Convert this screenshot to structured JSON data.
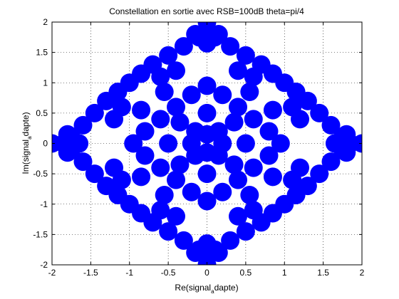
{
  "chart_data": {
    "type": "scatter",
    "title": "Constellation en sortie avec RSB=100dB theta=pi/4",
    "xlabel": {
      "before": "Re(signal",
      "subscript": "a",
      "after": "dapte)"
    },
    "ylabel": {
      "before": "Im(signal",
      "subscript": "a",
      "after": "dapte)"
    },
    "xlim": [
      -2,
      2
    ],
    "ylim": [
      -2,
      2
    ],
    "xticks": [
      -2,
      -1.5,
      -1,
      -0.5,
      0,
      0.5,
      1,
      1.5,
      2
    ],
    "yticks": [
      -2,
      -1.5,
      -1,
      -0.5,
      0,
      0.5,
      1,
      1.5,
      2
    ],
    "xtick_labels": [
      "-2",
      "-1.5",
      "-1",
      "-0.5",
      "0",
      "0.5",
      "1",
      "1.5",
      "2"
    ],
    "ytick_labels": [
      "-2",
      "-1.5",
      "-1",
      "-0.5",
      "0",
      "0.5",
      "1",
      "1.5",
      "2"
    ],
    "grid": true,
    "marker_color": "#0000ff",
    "series": [
      {
        "marker": "circle",
        "points": [
          [
            0,
            2
          ],
          [
            2,
            0
          ],
          [
            0,
            -2
          ],
          [
            -2,
            0
          ],
          [
            0,
            1.85
          ],
          [
            1.85,
            0
          ],
          [
            0,
            -1.85
          ],
          [
            -1.85,
            0
          ],
          [
            0,
            1.65
          ],
          [
            1.65,
            0
          ],
          [
            0,
            -1.65
          ],
          [
            -1.65,
            0
          ],
          [
            0.15,
            1.8
          ],
          [
            -0.15,
            1.8
          ],
          [
            0.15,
            -1.8
          ],
          [
            -0.15,
            -1.8
          ],
          [
            1.8,
            0.15
          ],
          [
            1.8,
            -0.15
          ],
          [
            -1.8,
            0.15
          ],
          [
            -1.8,
            -0.15
          ],
          [
            0.3,
            1.6
          ],
          [
            -0.3,
            1.6
          ],
          [
            0.3,
            -1.6
          ],
          [
            -0.3,
            -1.6
          ],
          [
            1.6,
            0.3
          ],
          [
            1.6,
            -0.3
          ],
          [
            -1.6,
            0.3
          ],
          [
            -1.6,
            -0.3
          ],
          [
            0.5,
            1.45
          ],
          [
            -0.5,
            1.45
          ],
          [
            0.5,
            -1.45
          ],
          [
            -0.5,
            -1.45
          ],
          [
            1.45,
            0.5
          ],
          [
            1.45,
            -0.5
          ],
          [
            -1.45,
            0.5
          ],
          [
            -1.45,
            -0.5
          ],
          [
            0.7,
            1.3
          ],
          [
            -0.7,
            1.3
          ],
          [
            0.7,
            -1.3
          ],
          [
            -0.7,
            -1.3
          ],
          [
            1.3,
            0.7
          ],
          [
            1.3,
            -0.7
          ],
          [
            -1.3,
            0.7
          ],
          [
            -1.3,
            -0.7
          ],
          [
            1.0,
            1.0
          ],
          [
            -1.0,
            1.0
          ],
          [
            1.0,
            -1.0
          ],
          [
            -1.0,
            -1.0
          ],
          [
            0.85,
            1.15
          ],
          [
            -0.85,
            1.15
          ],
          [
            0.85,
            -1.15
          ],
          [
            -0.85,
            -1.15
          ],
          [
            1.15,
            0.85
          ],
          [
            1.15,
            -0.85
          ],
          [
            -1.15,
            0.85
          ],
          [
            -1.15,
            -0.85
          ],
          [
            0.6,
            1.1
          ],
          [
            -0.6,
            1.1
          ],
          [
            0.6,
            -1.1
          ],
          [
            -0.6,
            -1.1
          ],
          [
            1.1,
            0.6
          ],
          [
            1.1,
            -0.6
          ],
          [
            -1.1,
            0.6
          ],
          [
            -1.1,
            -0.6
          ],
          [
            0.4,
            1.2
          ],
          [
            -0.4,
            1.2
          ],
          [
            0.4,
            -1.2
          ],
          [
            -0.4,
            -1.2
          ],
          [
            1.2,
            0.4
          ],
          [
            1.2,
            -0.4
          ],
          [
            -1.2,
            0.4
          ],
          [
            -1.2,
            -0.4
          ],
          [
            0,
            0.95
          ],
          [
            0.95,
            0
          ],
          [
            0,
            -0.95
          ],
          [
            -0.95,
            0
          ],
          [
            0.2,
            0.8
          ],
          [
            -0.2,
            0.8
          ],
          [
            0.2,
            -0.8
          ],
          [
            -0.2,
            -0.8
          ],
          [
            0.8,
            0.2
          ],
          [
            0.8,
            -0.2
          ],
          [
            -0.8,
            0.2
          ],
          [
            -0.8,
            -0.2
          ],
          [
            0.4,
            0.6
          ],
          [
            -0.4,
            0.6
          ],
          [
            0.4,
            -0.6
          ],
          [
            -0.4,
            -0.6
          ],
          [
            0.6,
            0.4
          ],
          [
            0.6,
            -0.4
          ],
          [
            -0.6,
            0.4
          ],
          [
            -0.6,
            -0.4
          ],
          [
            0.35,
            0.35
          ],
          [
            -0.35,
            0.35
          ],
          [
            0.35,
            -0.35
          ],
          [
            -0.35,
            -0.35
          ],
          [
            0,
            0.5
          ],
          [
            0.5,
            0
          ],
          [
            0,
            -0.5
          ],
          [
            -0.5,
            0
          ],
          [
            0.15,
            0.2
          ],
          [
            -0.15,
            0.2
          ],
          [
            0.15,
            -0.2
          ],
          [
            -0.15,
            -0.2
          ],
          [
            0.2,
            0
          ],
          [
            -0.2,
            0
          ],
          [
            0,
            0.15
          ],
          [
            0,
            -0.15
          ],
          [
            0.1,
            1.75
          ],
          [
            -0.1,
            1.75
          ],
          [
            0.1,
            -1.75
          ],
          [
            -0.1,
            -1.75
          ],
          [
            1.75,
            0.1
          ],
          [
            1.75,
            -0.1
          ],
          [
            -1.75,
            0.1
          ],
          [
            -1.75,
            -0.1
          ],
          [
            0.55,
            0.85
          ],
          [
            -0.55,
            0.85
          ],
          [
            0.55,
            -0.85
          ],
          [
            -0.55,
            -0.85
          ],
          [
            0.85,
            0.55
          ],
          [
            0.85,
            -0.55
          ],
          [
            -0.85,
            0.55
          ],
          [
            -0.85,
            -0.55
          ]
        ]
      }
    ]
  }
}
